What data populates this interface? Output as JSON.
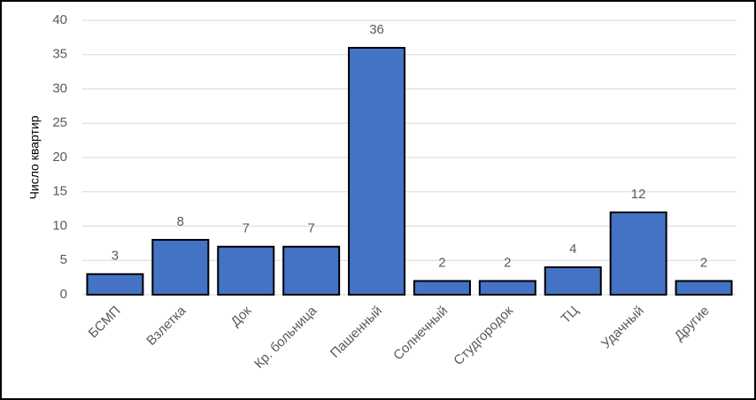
{
  "chart_data": {
    "type": "bar",
    "y_label": "Число квартир",
    "categories": [
      "БСМП",
      "Взлетка",
      "Док",
      "Кр. больница",
      "Пашенный",
      "Солнечный",
      "Студгородок",
      "ТЦ",
      "Удачный",
      "Другие"
    ],
    "values": [
      3,
      8,
      7,
      7,
      36,
      2,
      2,
      4,
      12,
      2
    ],
    "color": "#4472c4",
    "ylim": [
      0,
      40
    ],
    "yticks": [
      0,
      5,
      10,
      15,
      20,
      25,
      30,
      35,
      40
    ],
    "grid": true
  }
}
